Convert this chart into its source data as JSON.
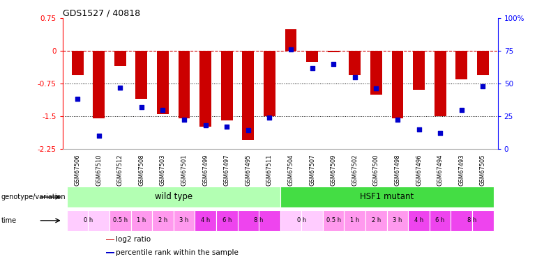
{
  "title": "GDS1527 / 40818",
  "samples": [
    "GSM67506",
    "GSM67510",
    "GSM67512",
    "GSM67508",
    "GSM67503",
    "GSM67501",
    "GSM67499",
    "GSM67497",
    "GSM67495",
    "GSM67511",
    "GSM67504",
    "GSM67507",
    "GSM67509",
    "GSM67502",
    "GSM67500",
    "GSM67498",
    "GSM67496",
    "GSM67494",
    "GSM67493",
    "GSM67505"
  ],
  "log2_ratio": [
    -0.55,
    -1.55,
    -0.35,
    -1.1,
    -1.45,
    -1.55,
    -1.75,
    -1.6,
    -2.05,
    -1.5,
    0.5,
    -0.25,
    -0.03,
    -0.55,
    -1.0,
    -1.55,
    -0.9,
    -1.5,
    -0.65,
    -0.55
  ],
  "percentile": [
    38,
    10,
    47,
    32,
    30,
    22,
    18,
    17,
    14,
    24,
    76,
    62,
    65,
    55,
    46,
    22,
    15,
    12,
    30,
    48
  ],
  "bar_color": "#cc0000",
  "dot_color": "#0000cc",
  "ylim_left": [
    -2.25,
    0.75
  ],
  "ylim_right": [
    0,
    100
  ],
  "yticks_left": [
    0.75,
    0,
    -0.75,
    -1.5,
    -2.25
  ],
  "yticks_right": [
    100,
    75,
    50,
    25,
    0
  ],
  "ytick_labels_left": [
    "0.75",
    "0",
    "-0.75",
    "-1.5",
    "-2.25"
  ],
  "ytick_labels_right": [
    "100%",
    "75",
    "50",
    "25",
    "0"
  ],
  "hline_y": 0,
  "dotted_lines": [
    -0.75,
    -1.5
  ],
  "genotype_groups": [
    {
      "label": "wild type",
      "start": 0,
      "end": 9,
      "color": "#b3ffb3"
    },
    {
      "label": "HSF1 mutant",
      "start": 10,
      "end": 19,
      "color": "#44dd44"
    }
  ],
  "wt_times": [
    "0 h",
    "0 h",
    "0.5 h",
    "1 h",
    "2 h",
    "3 h",
    "4 h",
    "6 h",
    "8 h",
    "8 h"
  ],
  "hsf_times": [
    "0 h",
    "0 h",
    "0.5 h",
    "1 h",
    "2 h",
    "3 h",
    "4 h",
    "6 h",
    "8 h",
    "8 h"
  ],
  "time_color_map": {
    "0 h": "#ffccff",
    "0.5 h": "#ff99ee",
    "1 h": "#ff99ee",
    "2 h": "#ff99ee",
    "3 h": "#ff99ee",
    "4 h": "#ee44ee",
    "6 h": "#ee44ee",
    "8 h": "#ee44ee"
  },
  "legend_items": [
    {
      "label": "log2 ratio",
      "color": "#cc0000"
    },
    {
      "label": "percentile rank within the sample",
      "color": "#0000cc"
    }
  ],
  "bar_width": 0.55
}
